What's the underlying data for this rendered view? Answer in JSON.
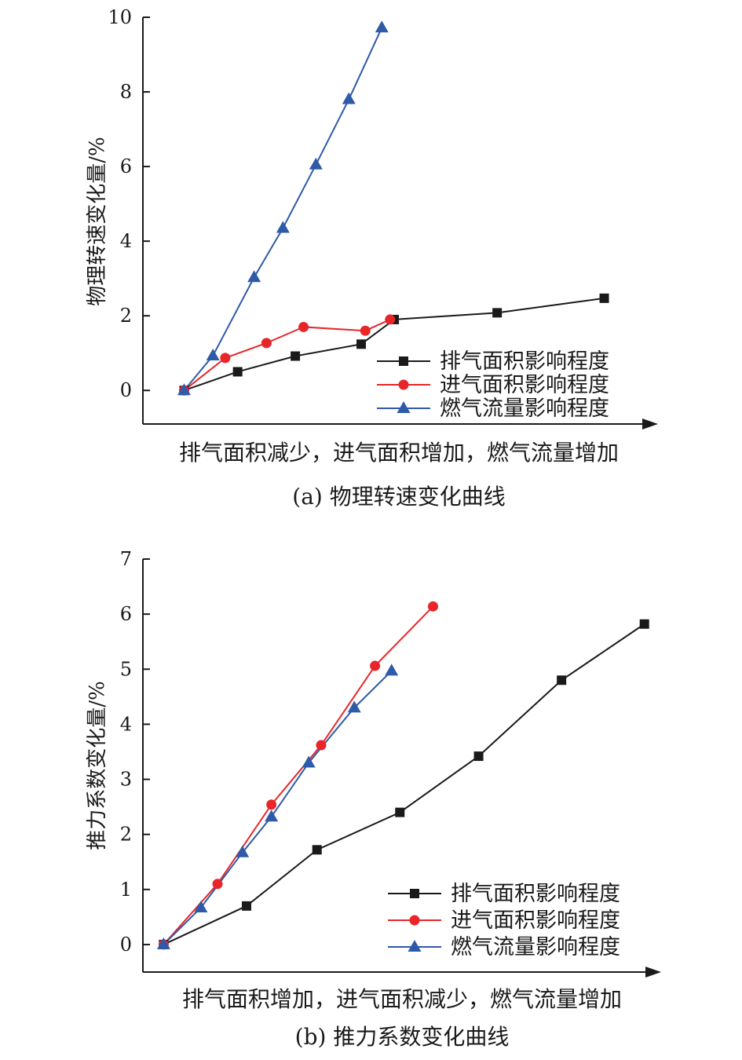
{
  "chart_data": [
    {
      "type": "line",
      "caption": "(a) 物理转速变化曲线",
      "xlabel": "排气面积减少，进气面积增加，燃气流量增加",
      "ylabel": "物理转速变化量/%",
      "xlim": [
        0,
        12.2
      ],
      "ylim": [
        -0.9,
        10
      ],
      "yticks": [
        0,
        2,
        4,
        6,
        8,
        10
      ],
      "legend": "bottom-right",
      "series": [
        {
          "name": "排气面积影响程度",
          "color": "#1a1a1a",
          "marker": "square",
          "x": [
            1,
            2.3,
            3.7,
            5.3,
            6.1,
            8.6,
            11.2
          ],
          "y": [
            0,
            0.5,
            0.92,
            1.24,
            1.9,
            2.08,
            2.47
          ]
        },
        {
          "name": "进气面积影响程度",
          "color": "#e8262a",
          "marker": "circle",
          "x": [
            1,
            2,
            3,
            3.9,
            5.4,
            6
          ],
          "y": [
            0,
            0.87,
            1.27,
            1.7,
            1.6,
            1.9
          ]
        },
        {
          "name": "燃气流量影响程度",
          "color": "#2f5aa8",
          "marker": "triangle",
          "x": [
            1,
            1.7,
            2.7,
            3.4,
            4.2,
            5,
            5.8
          ],
          "y": [
            0,
            0.93,
            3.03,
            4.35,
            6.05,
            7.8,
            9.72
          ]
        }
      ]
    },
    {
      "type": "line",
      "caption": "(b) 推力系数变化曲线",
      "xlabel": "排气面积增加，进气面积减少，燃气流量增加",
      "ylabel": "推力系数变化量/%",
      "xlim": [
        0,
        12.2
      ],
      "ylim": [
        -0.5,
        7
      ],
      "yticks": [
        0,
        1,
        2,
        3,
        4,
        5,
        6,
        7
      ],
      "legend": "bottom-right",
      "series": [
        {
          "name": "排气面积影响程度",
          "color": "#1a1a1a",
          "marker": "square",
          "x": [
            0.5,
            2.5,
            4.2,
            6.2,
            8.1,
            10.1,
            12.1
          ],
          "y": [
            0,
            0.7,
            1.72,
            2.4,
            3.42,
            4.8,
            5.82
          ]
        },
        {
          "name": "进气面积影响程度",
          "color": "#e8262a",
          "marker": "circle",
          "x": [
            0.5,
            1.8,
            3.1,
            4.3,
            5.6,
            7.0
          ],
          "y": [
            0,
            1.1,
            2.54,
            3.62,
            5.06,
            6.14
          ]
        },
        {
          "name": "燃气流量影响程度",
          "color": "#2f5aa8",
          "marker": "triangle",
          "x": [
            0.5,
            1.4,
            2.4,
            3.1,
            4.0,
            5.1,
            6.0
          ],
          "y": [
            0,
            0.67,
            1.67,
            2.32,
            3.3,
            4.3,
            4.97
          ]
        }
      ]
    }
  ]
}
